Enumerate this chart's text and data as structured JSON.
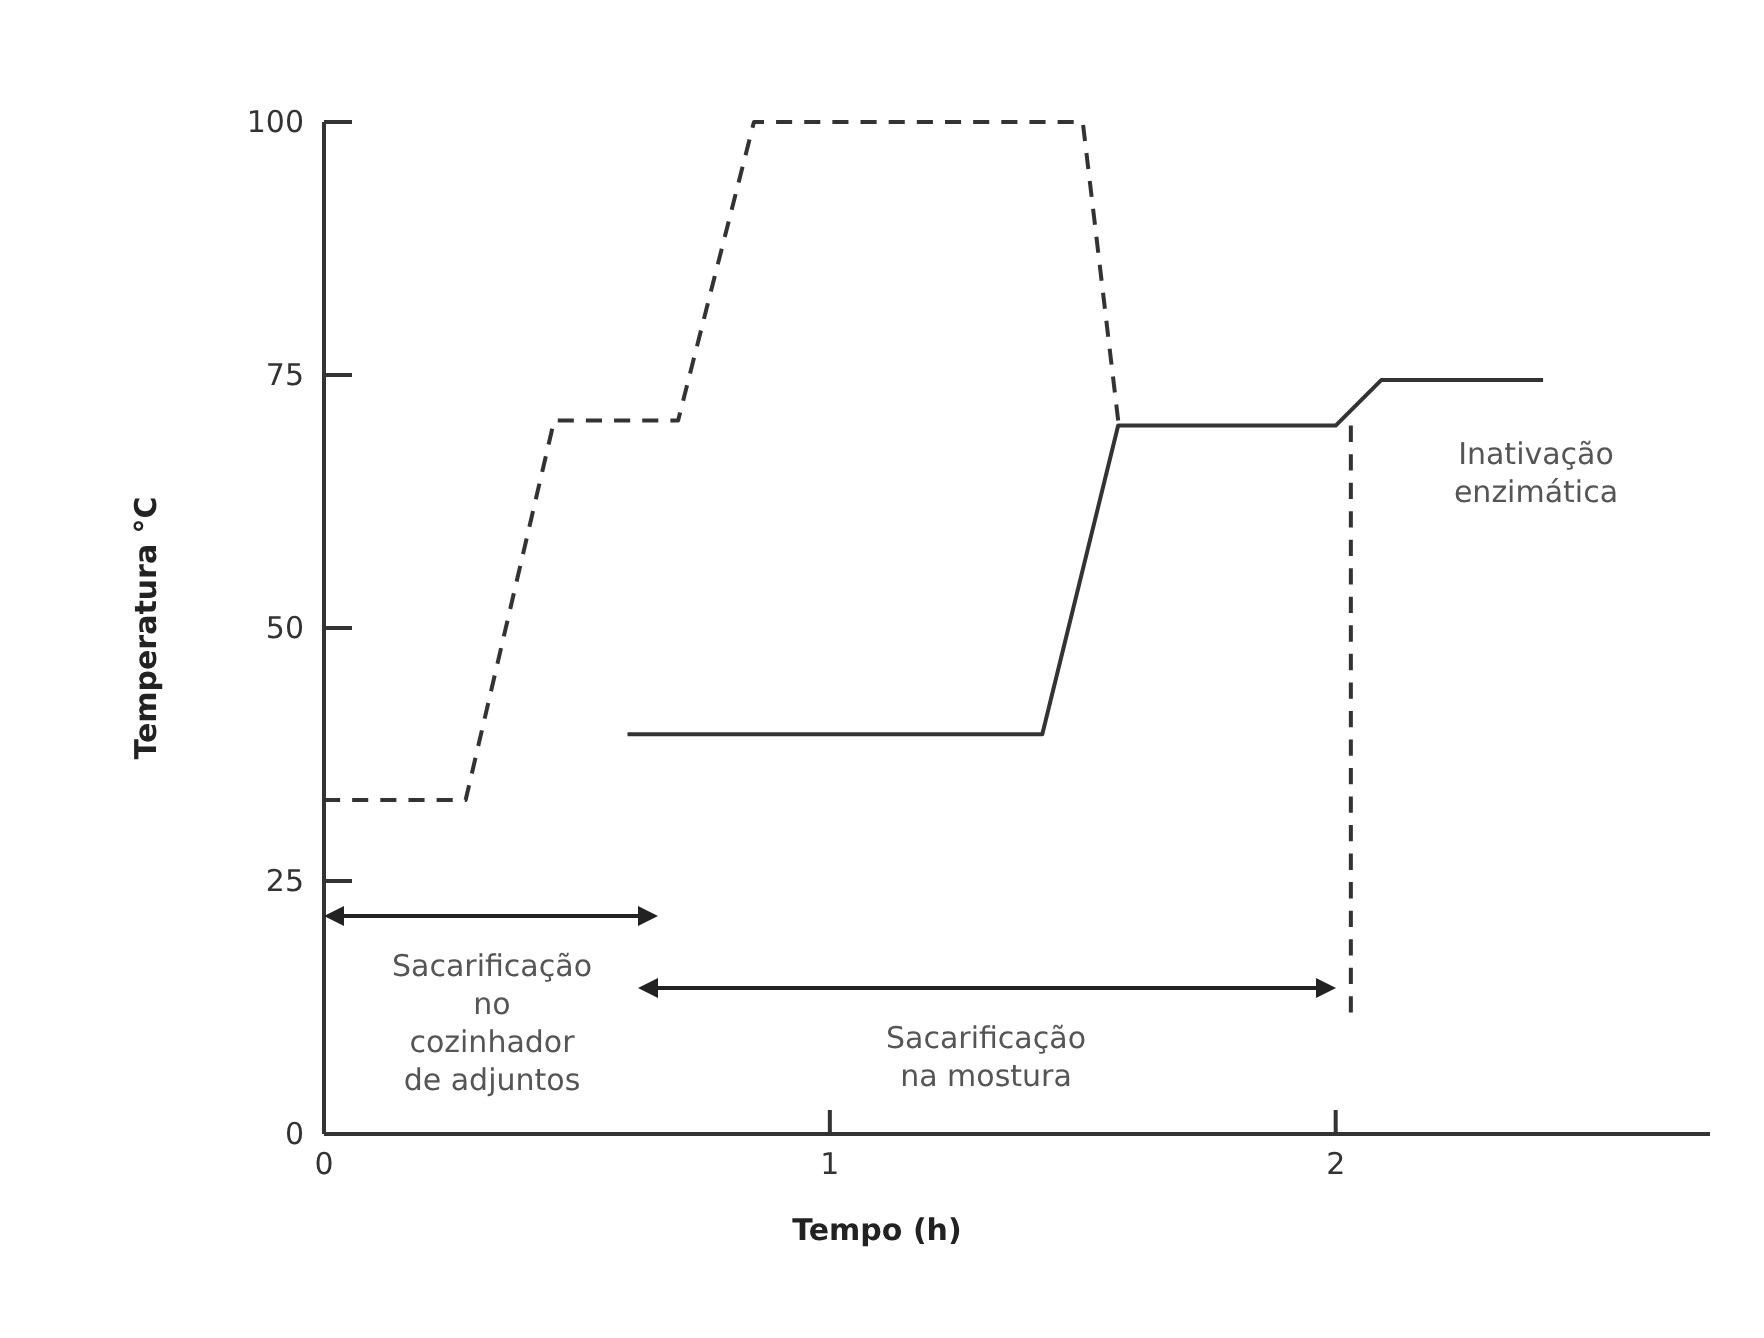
{
  "chart_data": {
    "type": "line",
    "xlabel": "Tempo (h)",
    "ylabel": "Temperatura °C",
    "xlim": [
      0,
      2.74
    ],
    "xticks": [
      0,
      1,
      2
    ],
    "ylim": [
      0,
      100
    ],
    "yticks": [
      0,
      25,
      50,
      75,
      100
    ],
    "grid": false,
    "series": [
      {
        "color": "#333333",
        "line_style": "dashed",
        "x": [
          0,
          0.28,
          0.455,
          0.7,
          0.85,
          1.5,
          1.57
        ],
        "values": [
          33,
          33,
          70.5,
          70.5,
          100,
          100,
          70.5
        ]
      },
      {
        "color": "#333333",
        "line_style": "solid",
        "x": [
          0.6,
          1.42,
          1.57,
          2.0,
          2.09,
          2.41
        ],
        "values": [
          39.5,
          39.5,
          70,
          70,
          74.5,
          74.5
        ]
      },
      {
        "color": "#333333",
        "line_style": "dashed",
        "x": [
          2.03,
          2.03
        ],
        "values": [
          70,
          12
        ]
      }
    ],
    "annotations": [
      "Sacarificação\nno\ncozinhador\nde adjuntos",
      "Sacarificação\nna mostura",
      "Inativação\nenzimática"
    ]
  }
}
